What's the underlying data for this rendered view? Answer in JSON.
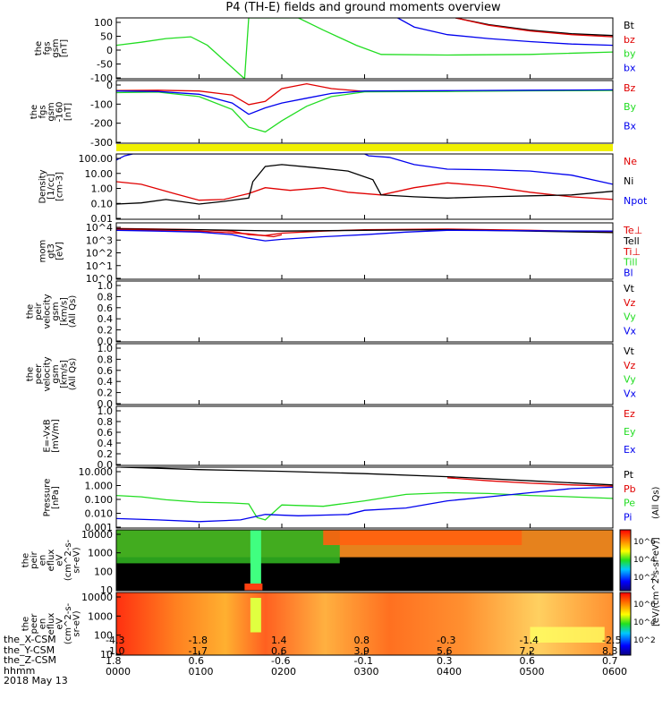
{
  "title": "P4 (TH-E) fields and ground moments overview",
  "date_label": "2018 May 13",
  "ephemeris": {
    "labels": [
      "the_X-CSM",
      "the_Y-CSM",
      "the_Z-CSM",
      "hhmm"
    ],
    "columns": [
      {
        "x": "-4.3",
        "y": "-1.0",
        "z": "1.8",
        "t": "0000"
      },
      {
        "x": "-1.8",
        "y": "-1.7",
        "z": "0.6",
        "t": "0100"
      },
      {
        "x": "1.4",
        "y": "0.6",
        "z": "-0.6",
        "t": "0200"
      },
      {
        "x": "0.8",
        "y": "3.9",
        "z": "-0.1",
        "t": "0300"
      },
      {
        "x": "-0.3",
        "y": "5.6",
        "z": "0.3",
        "t": "0400"
      },
      {
        "x": "-1.4",
        "y": "7.2",
        "z": "0.6",
        "t": "0500"
      },
      {
        "x": "-2.5",
        "y": "8.3",
        "z": "0.7",
        "t": "0600"
      }
    ]
  },
  "colorbar_label": "[eV/(cm^2-s-sr-eV)]",
  "colorbar_label_side": "(All Qs)",
  "colorbar_ticks": [
    "10^6",
    "10^4",
    "10^2"
  ],
  "colors": {
    "black": "#000000",
    "red": "#e00000",
    "green": "#22dd22",
    "blue": "#0000ee",
    "yellow": "#f0f000"
  },
  "chart_data": [
    {
      "type": "line",
      "ylabel": [
        "the",
        "fgs",
        "gsm",
        "[nT]"
      ],
      "ylim": [
        -100,
        100
      ],
      "ticks": [
        "100",
        "50",
        "0",
        "-50",
        "-100"
      ],
      "series": [
        {
          "name": "Bt",
          "color": "black",
          "x": [
            4.1,
            4.5,
            5.0,
            5.5,
            6.0
          ],
          "y": [
            100,
            78,
            60,
            48,
            42
          ]
        },
        {
          "name": "bz",
          "color": "red",
          "x": [
            4.1,
            4.5,
            5.0,
            5.5,
            6.0
          ],
          "y": [
            100,
            76,
            57,
            45,
            38
          ]
        },
        {
          "name": "by",
          "color": "green",
          "x": [
            0.0,
            0.3,
            0.6,
            0.9,
            1.1,
            1.55,
            1.6,
            2.2,
            2.5,
            2.9,
            3.2,
            4.0,
            5.0,
            6.0
          ],
          "y": [
            10,
            20,
            32,
            38,
            10,
            -100,
            100,
            100,
            60,
            10,
            -20,
            -22,
            -20,
            -12
          ]
        },
        {
          "name": "bx",
          "color": "blue",
          "x": [
            3.4,
            3.6,
            4.0,
            4.5,
            5.0,
            5.5,
            6.0
          ],
          "y": [
            100,
            70,
            45,
            32,
            22,
            14,
            10
          ]
        }
      ]
    },
    {
      "type": "line",
      "ylabel": [
        "the",
        "fgs",
        "gsm",
        "-160",
        "[nT]"
      ],
      "ylim": [
        -330,
        60
      ],
      "ticks": [
        "0",
        "-100",
        "-200",
        "-300"
      ],
      "series": [
        {
          "name": "Bz",
          "color": "red",
          "x": [
            0,
            0.5,
            1.0,
            1.4,
            1.6,
            1.8,
            2.0,
            2.3,
            2.6,
            3.0,
            4.0,
            5.0,
            6.0
          ],
          "y": [
            -2,
            0,
            -5,
            -30,
            -90,
            -70,
            10,
            40,
            10,
            -8,
            -5,
            -2,
            0
          ]
        },
        {
          "name": "By",
          "color": "green",
          "x": [
            0,
            0.5,
            1.0,
            1.4,
            1.6,
            1.8,
            2.0,
            2.3,
            2.6,
            3.0,
            4.0,
            5.0,
            6.0
          ],
          "y": [
            -15,
            -12,
            -40,
            -120,
            -230,
            -260,
            -190,
            -100,
            -40,
            -10,
            -8,
            -4,
            -2
          ]
        },
        {
          "name": "Bx",
          "color": "blue",
          "x": [
            0,
            0.5,
            1.0,
            1.4,
            1.6,
            1.8,
            2.0,
            2.3,
            2.6,
            3.0,
            4.0,
            5.0,
            6.0
          ],
          "y": [
            -5,
            -8,
            -25,
            -80,
            -150,
            -110,
            -80,
            -50,
            -20,
            -5,
            -3,
            0,
            2
          ]
        }
      ]
    },
    {
      "type": "line",
      "ylabel": [
        "Density",
        "[1/cc]",
        "[cm-3]"
      ],
      "yscale": "log",
      "ylim": [
        0.01,
        200
      ],
      "ticks": [
        "100.00",
        "10.00",
        "1.00",
        "0.10",
        "0.01"
      ],
      "series": [
        {
          "name": "Ne",
          "color": "red",
          "x": [
            0,
            0.3,
            0.7,
            1.0,
            1.3,
            1.6,
            1.8,
            2.1,
            2.5,
            2.8,
            3.2,
            3.6,
            4.0,
            4.5,
            5.0,
            5.5,
            6.0
          ],
          "y": [
            3,
            2,
            0.5,
            0.18,
            0.2,
            0.5,
            1.2,
            0.8,
            1.2,
            0.6,
            0.4,
            1.2,
            2.5,
            1.5,
            0.6,
            0.3,
            0.2
          ]
        },
        {
          "name": "Ni",
          "color": "black",
          "x": [
            0,
            0.3,
            0.6,
            1.0,
            1.3,
            1.6,
            1.65,
            1.8,
            2.0,
            2.4,
            2.8,
            3.1,
            3.2,
            3.6,
            4.0,
            4.5,
            5.0,
            5.5,
            6.0
          ],
          "y": [
            0.1,
            0.12,
            0.2,
            0.1,
            0.15,
            0.25,
            3,
            30,
            40,
            25,
            15,
            4,
            0.4,
            0.3,
            0.25,
            0.3,
            0.35,
            0.4,
            0.7
          ]
        },
        {
          "name": "Npot",
          "color": "blue",
          "x": [
            0,
            0.1,
            0.2,
            3.0,
            3.05,
            3.3,
            3.6,
            4.0,
            4.5,
            5.0,
            5.5,
            6.0
          ],
          "y": [
            80,
            150,
            200,
            200,
            150,
            120,
            40,
            20,
            18,
            15,
            8,
            2
          ]
        }
      ]
    },
    {
      "type": "line",
      "ylabel": [
        "mom",
        "gt3",
        "[eV]"
      ],
      "yscale": "log",
      "ylim": [
        0.5,
        30000
      ],
      "ticks": [
        "10^4",
        "10^3",
        "10^2",
        "10^1",
        "10^0"
      ],
      "series": [
        {
          "name": "Te⊥",
          "color": "red",
          "x": [
            0,
            0.5,
            1.0,
            1.4,
            1.6,
            1.8,
            2.0,
            2.5,
            3.0,
            4.0,
            5.0,
            6.0
          ],
          "y": [
            10000,
            9000,
            8000,
            6000,
            3000,
            2500,
            4000,
            6000,
            8000,
            9000,
            7000,
            5000
          ]
        },
        {
          "name": "Tell",
          "color": "black",
          "x": [
            0,
            1.0,
            2.0,
            3.0,
            4.0,
            5.0,
            6.0
          ],
          "y": [
            9000,
            8000,
            6000,
            7000,
            8000,
            6000,
            4500
          ]
        },
        {
          "name": "Ti⊥",
          "color": "red",
          "x": [
            0,
            0.5,
            1.0,
            1.6,
            1.9,
            2.0
          ],
          "y": [
            8000,
            7000,
            6000,
            3500,
            2000,
            3000
          ]
        },
        {
          "name": "Till",
          "color": "green",
          "x": [],
          "y": []
        },
        {
          "name": "Bl",
          "color": "blue",
          "x": [
            0,
            0.5,
            1.0,
            1.4,
            1.6,
            1.8,
            2.0,
            2.5,
            3.0,
            3.5,
            4.0,
            5.0,
            6.0
          ],
          "y": [
            7000,
            6000,
            5000,
            3000,
            1500,
            900,
            1200,
            2000,
            3000,
            5000,
            7000,
            6500,
            6000
          ]
        }
      ]
    },
    {
      "type": "line",
      "ylabel": [
        "the",
        "peir",
        "velocity",
        "gsm",
        "[km/s]",
        "(All Qs)"
      ],
      "ylim": [
        0,
        1
      ],
      "ticks": [
        "1.0",
        "0.8",
        "0.6",
        "0.4",
        "0.2",
        "0.0"
      ],
      "series": [
        {
          "name": "Vt",
          "color": "black",
          "x": [],
          "y": []
        },
        {
          "name": "Vz",
          "color": "red",
          "x": [],
          "y": []
        },
        {
          "name": "Vy",
          "color": "green",
          "x": [],
          "y": []
        },
        {
          "name": "Vx",
          "color": "blue",
          "x": [],
          "y": []
        }
      ]
    },
    {
      "type": "line",
      "ylabel": [
        "the",
        "peer",
        "velocity",
        "gsm",
        "[km/s]",
        "(All Qs)"
      ],
      "ylim": [
        0,
        1
      ],
      "ticks": [
        "1.0",
        "0.8",
        "0.6",
        "0.4",
        "0.2",
        "0.0"
      ],
      "series": [
        {
          "name": "Vt",
          "color": "black",
          "x": [],
          "y": []
        },
        {
          "name": "Vz",
          "color": "red",
          "x": [],
          "y": []
        },
        {
          "name": "Vy",
          "color": "green",
          "x": [],
          "y": []
        },
        {
          "name": "Vx",
          "color": "blue",
          "x": [],
          "y": []
        }
      ]
    },
    {
      "type": "line",
      "ylabel": [
        "E=-VxB",
        "[mV/m]"
      ],
      "ylim": [
        0,
        1
      ],
      "ticks": [
        "1.0",
        "0.8",
        "0.6",
        "0.4",
        "0.2",
        "0.0"
      ],
      "series": [
        {
          "name": "Ez",
          "color": "red",
          "x": [],
          "y": []
        },
        {
          "name": "Ey",
          "color": "green",
          "x": [],
          "y": []
        },
        {
          "name": "Ex",
          "color": "blue",
          "x": [],
          "y": []
        }
      ]
    },
    {
      "type": "line",
      "ylabel": [
        "Pressure",
        "[nPa]"
      ],
      "yscale": "log",
      "ylim": [
        0.001,
        30
      ],
      "ticks": [
        "10.000",
        "1.000",
        "0.100",
        "0.010",
        "0.001"
      ],
      "series": [
        {
          "name": "Pt",
          "color": "black",
          "x": [
            0.05,
            0.5,
            1.0,
            2.0,
            3.0,
            4.0,
            5.0,
            6.0
          ],
          "y": [
            30,
            25,
            20,
            15,
            10,
            6,
            3,
            1.5
          ]
        },
        {
          "name": "Pb",
          "color": "red",
          "x": [
            4.0,
            4.5,
            5.0,
            5.5,
            6.0
          ],
          "y": [
            5,
            3,
            2,
            1.5,
            1.2
          ]
        },
        {
          "name": "Pe",
          "color": "green",
          "x": [
            0,
            0.3,
            0.6,
            1.0,
            1.4,
            1.6,
            1.7,
            1.8,
            2.0,
            2.5,
            3.0,
            3.5,
            4.0,
            4.5,
            5.0,
            5.5,
            6.0
          ],
          "y": [
            0.25,
            0.2,
            0.12,
            0.08,
            0.07,
            0.06,
            0.006,
            0.004,
            0.05,
            0.04,
            0.1,
            0.3,
            0.4,
            0.35,
            0.25,
            0.2,
            0.15
          ]
        },
        {
          "name": "Pi",
          "color": "blue",
          "x": [
            0,
            0.5,
            1.0,
            1.5,
            1.8,
            2.2,
            2.8,
            3.0,
            3.5,
            4.0,
            4.5,
            5.0,
            5.5,
            6.0
          ],
          "y": [
            0.005,
            0.004,
            0.003,
            0.004,
            0.01,
            0.008,
            0.01,
            0.02,
            0.03,
            0.1,
            0.2,
            0.4,
            0.8,
            1.0
          ]
        }
      ]
    },
    {
      "type": "heatmap",
      "ylabel": [
        "the",
        "peir",
        "en",
        "eflux",
        "eV",
        "(cm^2-s-",
        "sr-eV)"
      ],
      "yscale": "log",
      "ylim": [
        5,
        25000
      ],
      "ticks": [
        "10000",
        "1000",
        "100",
        "10"
      ],
      "colorscale": "jet",
      "zscale": "log",
      "zlim": [
        10,
        10000000
      ]
    },
    {
      "type": "heatmap",
      "ylabel": [
        "the",
        "peer",
        "en",
        "eflux",
        "eV",
        "(cm^2-s-",
        "sr-eV)"
      ],
      "yscale": "log",
      "ylim": [
        5,
        25000
      ],
      "ticks": [
        "10000",
        "1000",
        "100",
        "10"
      ],
      "colorscale": "jet",
      "zscale": "log",
      "zlim": [
        10,
        10000000
      ]
    }
  ]
}
